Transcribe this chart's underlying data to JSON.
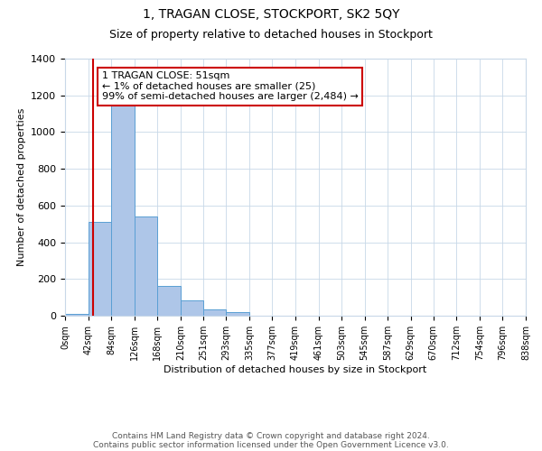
{
  "title": "1, TRAGAN CLOSE, STOCKPORT, SK2 5QY",
  "subtitle": "Size of property relative to detached houses in Stockport",
  "xlabel": "Distribution of detached houses by size in Stockport",
  "ylabel": "Number of detached properties",
  "bin_edges": [
    0,
    42,
    84,
    126,
    168,
    210,
    251,
    293,
    335,
    377,
    419,
    461,
    503,
    545,
    587,
    629,
    670,
    712,
    754,
    796,
    838
  ],
  "bin_labels": [
    "0sqm",
    "42sqm",
    "84sqm",
    "126sqm",
    "168sqm",
    "210sqm",
    "251sqm",
    "293sqm",
    "335sqm",
    "377sqm",
    "419sqm",
    "461sqm",
    "503sqm",
    "545sqm",
    "587sqm",
    "629sqm",
    "670sqm",
    "712sqm",
    "754sqm",
    "796sqm",
    "838sqm"
  ],
  "counts": [
    10,
    510,
    1155,
    540,
    160,
    85,
    35,
    20,
    0,
    0,
    0,
    0,
    0,
    0,
    0,
    0,
    0,
    0,
    0,
    0
  ],
  "bar_color": "#aec6e8",
  "bar_edge_color": "#5a9fd4",
  "property_line_x": 51,
  "property_line_color": "#cc0000",
  "annotation_line1": "1 TRAGAN CLOSE: 51sqm",
  "annotation_line2": "← 1% of detached houses are smaller (25)",
  "annotation_line3": "99% of semi-detached houses are larger (2,484) →",
  "annotation_box_color": "#ffffff",
  "annotation_box_edge_color": "#cc0000",
  "ylim": [
    0,
    1400
  ],
  "yticks": [
    0,
    200,
    400,
    600,
    800,
    1000,
    1200,
    1400
  ],
  "footer_line1": "Contains HM Land Registry data © Crown copyright and database right 2024.",
  "footer_line2": "Contains public sector information licensed under the Open Government Licence v3.0.",
  "background_color": "#ffffff",
  "grid_color": "#c8d8e8",
  "title_fontsize": 10,
  "subtitle_fontsize": 9,
  "ylabel_fontsize": 8,
  "xlabel_fontsize": 8,
  "tick_fontsize": 7,
  "annotation_fontsize": 8,
  "footer_fontsize": 6.5
}
